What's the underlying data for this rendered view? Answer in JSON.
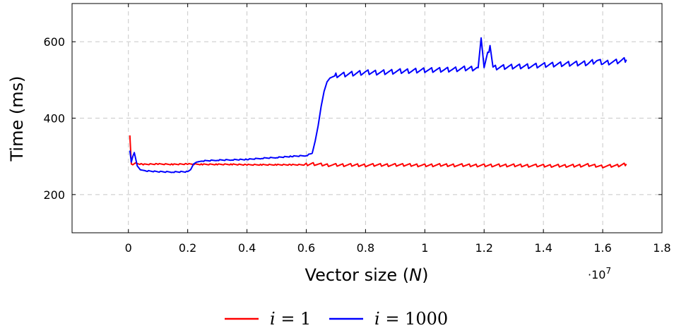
{
  "chart_data": {
    "type": "line",
    "xlabel": "Vector size (N)",
    "xlabel_parts": {
      "before": "Vector size (",
      "var": "N",
      "after": ")"
    },
    "ylabel": "Time (ms)",
    "x_scale_note": {
      "prefix": "·10",
      "exponent": "7"
    },
    "xlim": [
      -0.19,
      1.8
    ],
    "ylim": [
      100,
      700
    ],
    "x_ticks": [
      0,
      0.2,
      0.4,
      0.6,
      0.8,
      1,
      1.2,
      1.4,
      1.6,
      1.8
    ],
    "x_tick_labels": [
      "0",
      "0.2",
      "0.4",
      "0.6",
      "0.8",
      "1",
      "1.2",
      "1.4",
      "1.6",
      "1.8"
    ],
    "y_ticks": [
      200,
      400,
      600
    ],
    "y_tick_labels": [
      "200",
      "400",
      "600"
    ],
    "grid": true,
    "grid_style": "dashed",
    "legend_position": "bottom-center",
    "series": [
      {
        "name": "i = 1",
        "legend_var": "i",
        "legend_rest": " = 1",
        "color": "#ff0000",
        "points": [
          [
            0.005,
            355
          ],
          [
            0.01,
            280
          ],
          [
            0.015,
            278
          ],
          [
            0.02,
            282
          ],
          [
            0.05,
            279
          ],
          [
            0.1,
            280
          ],
          [
            0.15,
            279
          ],
          [
            0.2,
            280
          ],
          [
            0.25,
            279
          ],
          [
            0.3,
            279
          ],
          [
            0.35,
            279
          ],
          [
            0.4,
            278
          ],
          [
            0.45,
            278
          ],
          [
            0.5,
            278
          ],
          [
            0.55,
            278
          ],
          [
            0.6,
            278
          ],
          [
            0.62,
            280
          ],
          [
            0.65,
            278
          ],
          [
            0.7,
            277
          ],
          [
            0.75,
            277
          ],
          [
            0.8,
            277
          ],
          [
            0.85,
            277
          ],
          [
            0.9,
            277
          ],
          [
            0.95,
            277
          ],
          [
            1.0,
            276
          ],
          [
            1.05,
            277
          ],
          [
            1.1,
            277
          ],
          [
            1.15,
            276
          ],
          [
            1.2,
            276
          ],
          [
            1.25,
            276
          ],
          [
            1.3,
            276
          ],
          [
            1.35,
            276
          ],
          [
            1.4,
            275
          ],
          [
            1.45,
            275
          ],
          [
            1.5,
            275
          ],
          [
            1.53,
            276
          ],
          [
            1.55,
            277
          ],
          [
            1.6,
            274
          ],
          [
            1.65,
            275
          ],
          [
            1.68,
            280
          ]
        ],
        "sawtooth_from": 0.6,
        "sawtooth_period": 0.025,
        "sawtooth_amp": 8
      },
      {
        "name": "i = 1000",
        "legend_var": "i",
        "legend_rest": " = 1000",
        "color": "#0000ff",
        "points": [
          [
            0.005,
            315
          ],
          [
            0.01,
            285
          ],
          [
            0.015,
            300
          ],
          [
            0.02,
            310
          ],
          [
            0.03,
            275
          ],
          [
            0.04,
            265
          ],
          [
            0.06,
            262
          ],
          [
            0.1,
            260
          ],
          [
            0.15,
            259
          ],
          [
            0.2,
            260
          ],
          [
            0.21,
            265
          ],
          [
            0.22,
            280
          ],
          [
            0.23,
            285
          ],
          [
            0.25,
            288
          ],
          [
            0.3,
            290
          ],
          [
            0.35,
            291
          ],
          [
            0.4,
            292
          ],
          [
            0.45,
            295
          ],
          [
            0.5,
            297
          ],
          [
            0.55,
            300
          ],
          [
            0.6,
            302
          ],
          [
            0.62,
            308
          ],
          [
            0.63,
            340
          ],
          [
            0.64,
            380
          ],
          [
            0.65,
            430
          ],
          [
            0.66,
            470
          ],
          [
            0.67,
            495
          ],
          [
            0.68,
            505
          ],
          [
            0.7,
            512
          ],
          [
            0.75,
            516
          ],
          [
            0.8,
            520
          ],
          [
            0.85,
            520
          ],
          [
            0.9,
            522
          ],
          [
            0.95,
            524
          ],
          [
            1.0,
            526
          ],
          [
            1.05,
            527
          ],
          [
            1.1,
            528
          ],
          [
            1.15,
            530
          ],
          [
            1.18,
            532
          ],
          [
            1.19,
            610
          ],
          [
            1.2,
            533
          ],
          [
            1.22,
            590
          ],
          [
            1.23,
            533
          ],
          [
            1.25,
            534
          ],
          [
            1.3,
            536
          ],
          [
            1.35,
            537
          ],
          [
            1.4,
            538
          ],
          [
            1.45,
            540
          ],
          [
            1.5,
            542
          ],
          [
            1.55,
            543
          ],
          [
            1.58,
            550
          ],
          [
            1.6,
            545
          ],
          [
            1.65,
            548
          ],
          [
            1.68,
            553
          ]
        ],
        "sawtooth_from": 0.7,
        "sawtooth_period": 0.027,
        "sawtooth_amp": 14
      }
    ]
  }
}
